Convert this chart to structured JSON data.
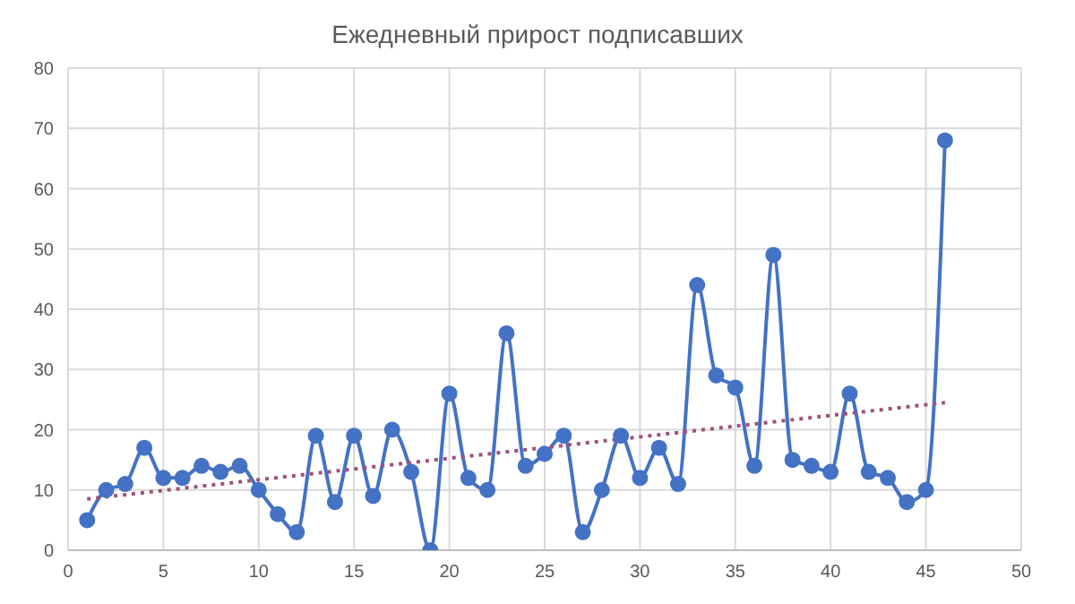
{
  "chart_data": {
    "type": "line",
    "title": "Ежедневный прирост подписавших",
    "x": [
      1,
      2,
      3,
      4,
      5,
      6,
      7,
      8,
      9,
      10,
      11,
      12,
      13,
      14,
      15,
      16,
      17,
      18,
      19,
      20,
      21,
      22,
      23,
      24,
      25,
      26,
      27,
      28,
      29,
      30,
      31,
      32,
      33,
      34,
      35,
      36,
      37,
      38,
      39,
      40,
      41,
      42,
      43,
      44,
      45,
      46
    ],
    "series": [
      {
        "color": "#4472c4",
        "marker": "circle",
        "line_style": "solid",
        "values": [
          5,
          10,
          11,
          17,
          12,
          12,
          14,
          13,
          14,
          10,
          6,
          3,
          19,
          8,
          19,
          9,
          20,
          13,
          0,
          26,
          12,
          10,
          36,
          14,
          16,
          19,
          3,
          10,
          19,
          12,
          17,
          11,
          44,
          29,
          27,
          14,
          49,
          15,
          14,
          13,
          26,
          13,
          12,
          8,
          10,
          68
        ]
      },
      {
        "type": "line",
        "color": "#a0527a",
        "marker": "none",
        "line_style": "dotted",
        "x": [
          1,
          46
        ],
        "values": [
          8.5,
          24.5
        ]
      }
    ],
    "xlim": [
      0,
      50
    ],
    "xticks": [
      0,
      5,
      10,
      15,
      20,
      25,
      30,
      35,
      40,
      45,
      50
    ],
    "ylim": [
      0,
      80
    ],
    "yticks": [
      0,
      10,
      20,
      30,
      40,
      50,
      60,
      70,
      80
    ],
    "grid": true
  }
}
